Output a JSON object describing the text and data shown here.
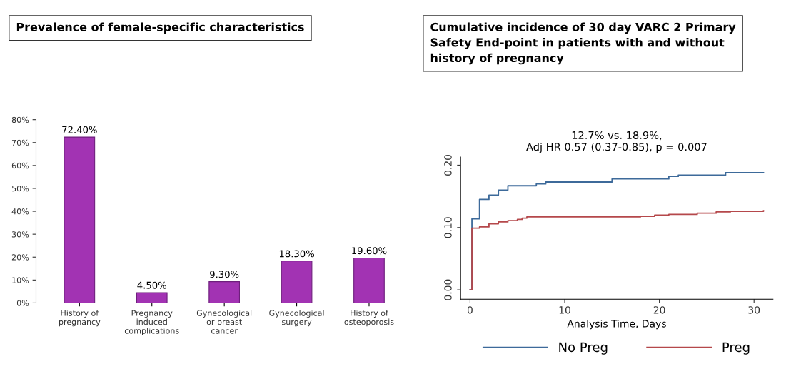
{
  "chart_data": [
    {
      "type": "bar",
      "title": "Prevalence of female-specific characteristics",
      "categories": [
        "History of\npregnancy",
        "Pregnancy\ninduced\ncomplications",
        "Gynecological\nor breast\ncancer",
        "Gynecological\nsurgery",
        "History of\nosteoporosis"
      ],
      "values": [
        72.4,
        4.5,
        9.3,
        18.3,
        19.6
      ],
      "color": "#a233b3",
      "value_labels": [
        "72.40%",
        "4.50%",
        "9.30%",
        "18.30%",
        "19.60%"
      ],
      "ylim": [
        0,
        80
      ],
      "yticks": [
        {
          "value": 0,
          "label": "0%"
        },
        {
          "value": 10,
          "label": "10%"
        },
        {
          "value": 20,
          "label": "20%"
        },
        {
          "value": 30,
          "label": "30%"
        },
        {
          "value": 40,
          "label": "40%"
        },
        {
          "value": 50,
          "label": "50%"
        },
        {
          "value": 60,
          "label": "60%"
        },
        {
          "value": 70,
          "label": "70%"
        },
        {
          "value": 80,
          "label": "80%"
        }
      ],
      "grid": false,
      "legend": false
    },
    {
      "type": "step",
      "title": "Cumulative incidence of 30 day VARC 2 Primary\nSafety End-point in patients with and without\nhistory of pregnancy",
      "xlabel": "Analysis Time, Days",
      "annotations": [
        "12.7% vs. 18.9%,\nAdj HR 0.57 (0.37-0.85), p = 0.007"
      ],
      "series": [
        {
          "name": "No Preg",
          "color": "#3d6a9a",
          "x": [
            0,
            0.2,
            1,
            2,
            3,
            4,
            7,
            8,
            15,
            21,
            22,
            27,
            31
          ],
          "values": [
            0,
            0.114,
            0.145,
            0.152,
            0.16,
            0.167,
            0.17,
            0.173,
            0.178,
            0.182,
            0.184,
            0.188,
            0.188
          ]
        },
        {
          "name": "Preg",
          "color": "#b5484b",
          "x": [
            0,
            0.2,
            1,
            2,
            3,
            4,
            5,
            5.5,
            6,
            18,
            19.5,
            21,
            24,
            26,
            27.5,
            31
          ],
          "values": [
            0,
            0.099,
            0.101,
            0.106,
            0.109,
            0.111,
            0.113,
            0.115,
            0.117,
            0.118,
            0.12,
            0.121,
            0.123,
            0.125,
            0.126,
            0.127
          ]
        }
      ],
      "xlim": [
        -1,
        32
      ],
      "xticks": [
        0,
        10,
        20,
        30
      ],
      "ylim": [
        -0.015,
        0.213
      ],
      "yticks": [
        {
          "value": 0,
          "label": "0.00"
        },
        {
          "value": 0.1,
          "label": "0.10"
        },
        {
          "value": 0.2,
          "label": "0.20"
        }
      ],
      "grid": false,
      "legend": "bottom",
      "line_style": "solid",
      "marker": "none"
    }
  ]
}
